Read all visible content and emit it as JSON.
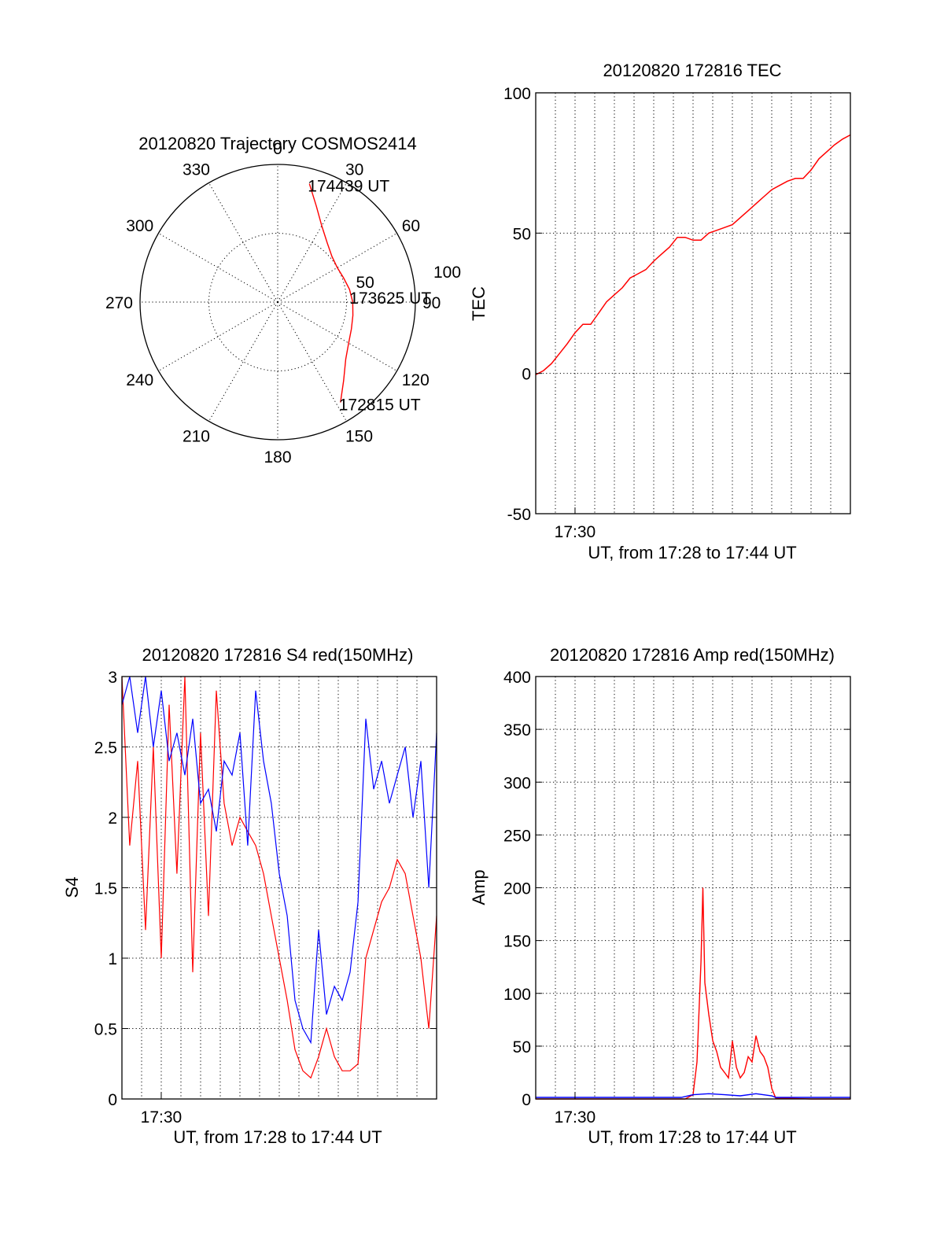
{
  "figure": {
    "background": "#ffffff",
    "colors": {
      "red": "#ff0000",
      "blue": "#0000ff",
      "axis": "#000000"
    }
  },
  "chart_data": [
    {
      "id": "trajectory",
      "type": "scatter",
      "subtype": "polar",
      "title": "20120820 Trajectory COSMOS2414",
      "azimuth_labels": [
        "0",
        "30",
        "60",
        "90",
        "120",
        "150",
        "180",
        "210",
        "240",
        "270",
        "300",
        "330"
      ],
      "radial_labels": [
        "50",
        "100"
      ],
      "radial_range": [
        0,
        100
      ],
      "grid": true,
      "series": [
        {
          "color": "#ff0000",
          "points_az_r": [
            [
              15.0,
              89.0
            ],
            [
              22.0,
              75.0
            ],
            [
              30.0,
              64.0
            ],
            [
              40.0,
              56.0
            ],
            [
              50.0,
              51.5
            ],
            [
              60.0,
              50.0
            ],
            [
              70.0,
              51.0
            ],
            [
              80.0,
              53.0
            ],
            [
              90.0,
              54.5
            ],
            [
              100.0,
              55.5
            ],
            [
              110.0,
              57.0
            ],
            [
              120.0,
              59.5
            ],
            [
              130.0,
              64.5
            ],
            [
              140.0,
              74.5
            ],
            [
              148.0,
              86.0
            ]
          ]
        }
      ],
      "annotations": [
        {
          "text": "174439 UT",
          "az": 15.0,
          "r": 89.0
        },
        {
          "text": "173625 UT",
          "az": 85.0,
          "r": 53.5
        },
        {
          "text": "172815 UT",
          "az": 148.0,
          "r": 86.0
        }
      ]
    },
    {
      "id": "tec",
      "type": "line",
      "title": "20120820 172816 TEC",
      "xlabel": "UT, from 17:28 to 17:44 UT",
      "ylabel": "TEC",
      "xlim": [
        17.4667,
        17.7333
      ],
      "ylim": [
        -50,
        100
      ],
      "y_ticks": [
        -50,
        0,
        50,
        100
      ],
      "x_tick_labels": [
        {
          "x": 17.5,
          "label": "17:30"
        }
      ],
      "grid": true,
      "series": [
        {
          "color": "#ff0000",
          "x": [
            17.4667,
            17.4733,
            17.48,
            17.4867,
            17.4933,
            17.5,
            17.5067,
            17.5133,
            17.52,
            17.5267,
            17.5333,
            17.54,
            17.5467,
            17.5533,
            17.56,
            17.5667,
            17.5733,
            17.58,
            17.5867,
            17.5933,
            17.6,
            17.6067,
            17.6133,
            17.62,
            17.6267,
            17.6333,
            17.64,
            17.6467,
            17.6533,
            17.66,
            17.6667,
            17.6733,
            17.68,
            17.6867,
            17.6933,
            17.7,
            17.7067,
            17.7133,
            17.72,
            17.7267,
            17.7333
          ],
          "values": [
            -0.5,
            1.0,
            3.5,
            7.0,
            10.5,
            14.5,
            17.5,
            17.5,
            21.5,
            25.5,
            28.0,
            30.5,
            34.0,
            35.5,
            37.0,
            40.0,
            42.5,
            45.0,
            48.5,
            48.5,
            47.5,
            47.5,
            50.0,
            51.0,
            52.0,
            53.0,
            55.5,
            58.0,
            60.5,
            63.0,
            65.5,
            67.0,
            68.5,
            69.5,
            69.5,
            72.5,
            76.5,
            79.0,
            81.5,
            83.5,
            85.0
          ]
        }
      ]
    },
    {
      "id": "s4",
      "type": "line",
      "title": "20120820 172816 S4 red(150MHz)",
      "xlabel": "UT, from 17:28 to 17:44 UT",
      "ylabel": "S4",
      "xlim": [
        17.4667,
        17.7333
      ],
      "ylim": [
        0,
        3
      ],
      "y_ticks": [
        0,
        0.5,
        1,
        1.5,
        2,
        2.5,
        3
      ],
      "y_tick_labels": [
        "0",
        "0.5",
        "1",
        "1.5",
        "2",
        "2.5",
        "3"
      ],
      "x_tick_labels": [
        {
          "x": 17.5,
          "label": "17:30"
        }
      ],
      "grid": true,
      "series": [
        {
          "color": "#ff0000",
          "x": [
            17.4667,
            17.4733,
            17.48,
            17.4867,
            17.4933,
            17.5,
            17.5067,
            17.5133,
            17.52,
            17.5267,
            17.5333,
            17.54,
            17.5467,
            17.5533,
            17.56,
            17.5667,
            17.5733,
            17.58,
            17.5867,
            17.5933,
            17.6,
            17.6067,
            17.6133,
            17.62,
            17.6267,
            17.6333,
            17.64,
            17.6467,
            17.6533,
            17.66,
            17.6667,
            17.6733,
            17.68,
            17.6867,
            17.6933,
            17.7,
            17.7067,
            17.7133,
            17.72,
            17.7267,
            17.7333
          ],
          "values": [
            3.0,
            1.8,
            2.4,
            1.2,
            2.5,
            1.0,
            2.8,
            1.6,
            3.0,
            0.9,
            2.6,
            1.3,
            2.9,
            2.1,
            1.8,
            2.0,
            1.9,
            1.8,
            1.6,
            1.3,
            1.0,
            0.7,
            0.35,
            0.2,
            0.15,
            0.3,
            0.5,
            0.3,
            0.2,
            0.2,
            0.25,
            1.0,
            1.2,
            1.4,
            1.5,
            1.7,
            1.6,
            1.3,
            1.0,
            0.5,
            1.3
          ]
        },
        {
          "color": "#0000ff",
          "x": [
            17.4667,
            17.4733,
            17.48,
            17.4867,
            17.4933,
            17.5,
            17.5067,
            17.5133,
            17.52,
            17.5267,
            17.5333,
            17.54,
            17.5467,
            17.5533,
            17.56,
            17.5667,
            17.5733,
            17.58,
            17.5867,
            17.5933,
            17.6,
            17.6067,
            17.6133,
            17.62,
            17.6267,
            17.6333,
            17.64,
            17.6467,
            17.6533,
            17.66,
            17.6667,
            17.6733,
            17.68,
            17.6867,
            17.6933,
            17.7,
            17.7067,
            17.7133,
            17.72,
            17.7267,
            17.7333
          ],
          "values": [
            2.8,
            3.0,
            2.6,
            3.0,
            2.5,
            2.9,
            2.4,
            2.6,
            2.3,
            2.7,
            2.1,
            2.2,
            1.9,
            2.4,
            2.3,
            2.6,
            1.8,
            2.9,
            2.4,
            2.1,
            1.6,
            1.3,
            0.7,
            0.5,
            0.4,
            1.2,
            0.6,
            0.8,
            0.7,
            0.9,
            1.4,
            2.7,
            2.2,
            2.4,
            2.1,
            2.3,
            2.5,
            2.0,
            2.4,
            1.5,
            2.6
          ]
        }
      ]
    },
    {
      "id": "amp",
      "type": "line",
      "title": "20120820 172816 Amp red(150MHz)",
      "xlabel": "UT, from 17:28 to 17:44 UT",
      "ylabel": "Amp",
      "xlim": [
        17.4667,
        17.7333
      ],
      "ylim": [
        0,
        400
      ],
      "y_ticks": [
        0,
        50,
        100,
        150,
        200,
        250,
        300,
        350,
        400
      ],
      "x_tick_labels": [
        {
          "x": 17.5,
          "label": "17:30"
        }
      ],
      "grid": true,
      "series": [
        {
          "color": "#ff0000",
          "x": [
            17.4667,
            17.5,
            17.55,
            17.5933,
            17.6,
            17.6033,
            17.6067,
            17.6083,
            17.61,
            17.6133,
            17.6167,
            17.62,
            17.6233,
            17.6267,
            17.63,
            17.6333,
            17.6367,
            17.64,
            17.6433,
            17.6467,
            17.65,
            17.6533,
            17.6567,
            17.66,
            17.6633,
            17.6667,
            17.67,
            17.7,
            17.7333
          ],
          "values": [
            0,
            0,
            0,
            0,
            4,
            35,
            130,
            200,
            110,
            80,
            55,
            45,
            30,
            25,
            20,
            55,
            30,
            20,
            25,
            40,
            35,
            60,
            45,
            40,
            30,
            10,
            1,
            0,
            0
          ]
        },
        {
          "color": "#0000ff",
          "x": [
            17.4667,
            17.5,
            17.55,
            17.59,
            17.6,
            17.6133,
            17.6267,
            17.64,
            17.6533,
            17.6667,
            17.67,
            17.7,
            17.7333
          ],
          "values": [
            1.5,
            1.5,
            1.5,
            1.5,
            4,
            5,
            4,
            3,
            5,
            3,
            1.5,
            1.5,
            1.5
          ]
        }
      ]
    }
  ]
}
